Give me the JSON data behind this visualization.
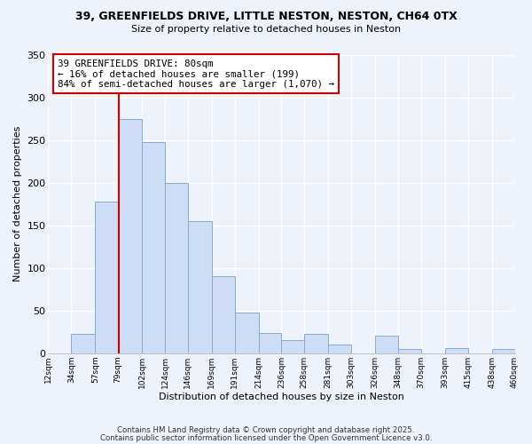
{
  "title": "39, GREENFIELDS DRIVE, LITTLE NESTON, NESTON, CH64 0TX",
  "subtitle": "Size of property relative to detached houses in Neston",
  "xlabel": "Distribution of detached houses by size in Neston",
  "ylabel": "Number of detached properties",
  "bar_color": "#ccddf5",
  "bar_edge_color": "#88aacc",
  "background_color": "#eef2fa",
  "grid_color": "#ffffff",
  "bins": [
    12,
    34,
    57,
    79,
    102,
    124,
    146,
    169,
    191,
    214,
    236,
    258,
    281,
    303,
    326,
    348,
    370,
    393,
    415,
    438,
    460
  ],
  "bin_labels": [
    "12sqm",
    "34sqm",
    "57sqm",
    "79sqm",
    "102sqm",
    "124sqm",
    "146sqm",
    "169sqm",
    "191sqm",
    "214sqm",
    "236sqm",
    "258sqm",
    "281sqm",
    "303sqm",
    "326sqm",
    "348sqm",
    "370sqm",
    "393sqm",
    "415sqm",
    "438sqm",
    "460sqm"
  ],
  "counts": [
    0,
    23,
    178,
    275,
    248,
    200,
    155,
    90,
    48,
    24,
    15,
    23,
    10,
    0,
    21,
    5,
    0,
    6,
    0,
    5,
    0
  ],
  "vline_x": 80,
  "vline_color": "#cc0000",
  "annotation_line1": "39 GREENFIELDS DRIVE: 80sqm",
  "annotation_line2": "← 16% of detached houses are smaller (199)",
  "annotation_line3": "84% of semi-detached houses are larger (1,070) →",
  "annotation_box_color": "#ffffff",
  "annotation_box_edge": "#cc0000",
  "ylim": [
    0,
    350
  ],
  "yticks": [
    0,
    50,
    100,
    150,
    200,
    250,
    300,
    350
  ],
  "footer1": "Contains HM Land Registry data © Crown copyright and database right 2025.",
  "footer2": "Contains public sector information licensed under the Open Government Licence v3.0."
}
